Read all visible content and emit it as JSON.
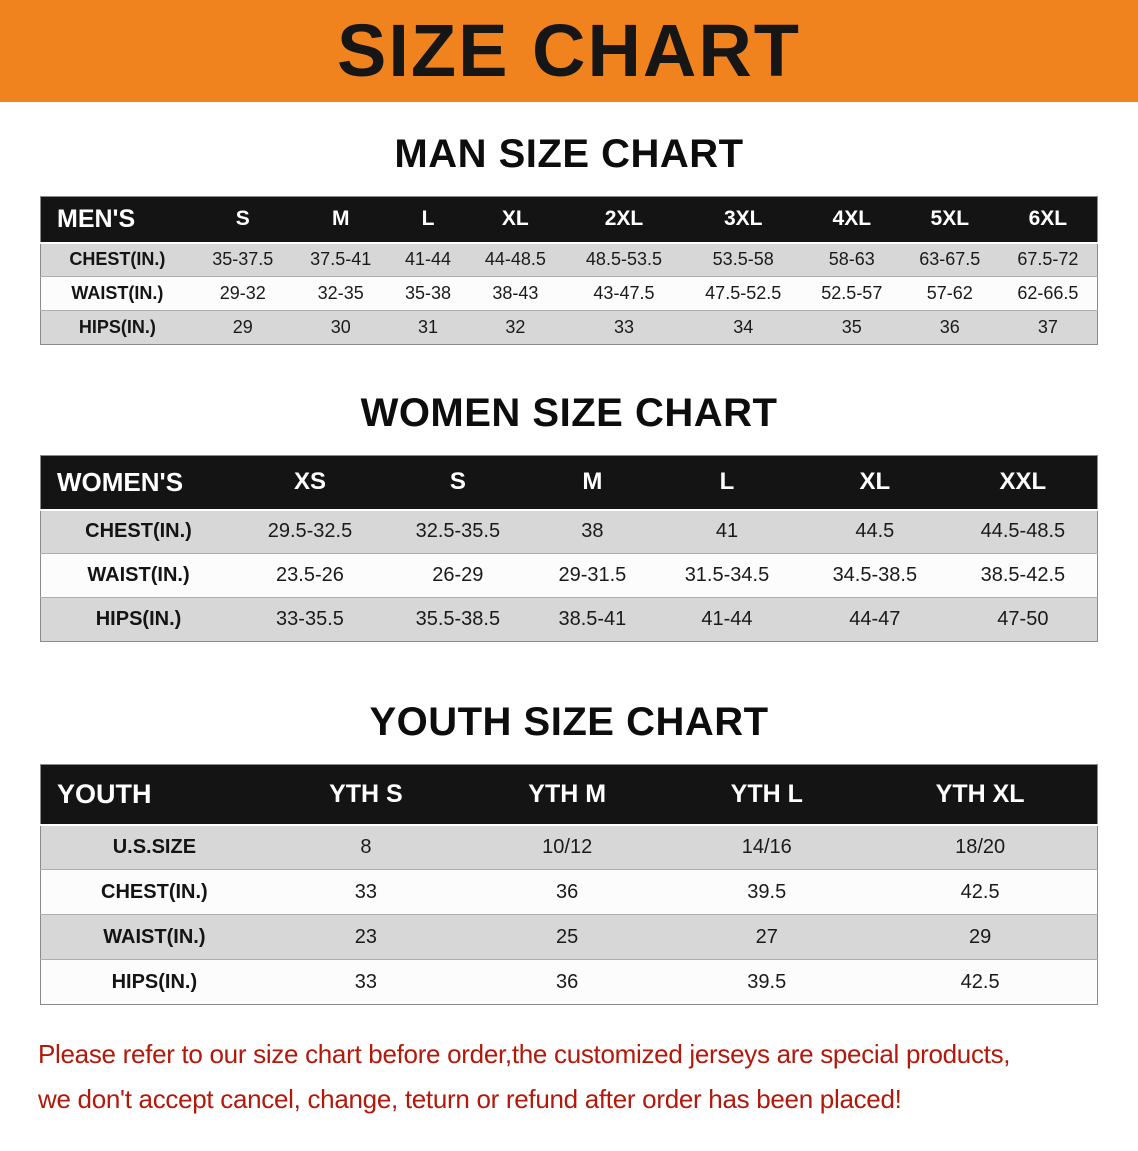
{
  "banner": {
    "title": "SIZE CHART",
    "bg_color": "#f1831f"
  },
  "sections": [
    {
      "id": "men",
      "heading": "MAN SIZE CHART",
      "header": [
        "MEN'S",
        "S",
        "M",
        "L",
        "XL",
        "2XL",
        "3XL",
        "4XL",
        "5XL",
        "6XL"
      ],
      "rows": [
        {
          "label": "CHEST(IN.)",
          "values": [
            "35-37.5",
            "37.5-41",
            "41-44",
            "44-48.5",
            "48.5-53.5",
            "53.5-58",
            "58-63",
            "63-67.5",
            "67.5-72"
          ]
        },
        {
          "label": "WAIST(IN.)",
          "values": [
            "29-32",
            "32-35",
            "35-38",
            "38-43",
            "43-47.5",
            "47.5-52.5",
            "52.5-57",
            "57-62",
            "62-66.5"
          ]
        },
        {
          "label": "HIPS(IN.)",
          "values": [
            "29",
            "30",
            "31",
            "32",
            "33",
            "34",
            "35",
            "36",
            "37"
          ]
        }
      ]
    },
    {
      "id": "women",
      "heading": "WOMEN SIZE CHART",
      "header": [
        "WOMEN'S",
        "XS",
        "S",
        "M",
        "L",
        "XL",
        "XXL"
      ],
      "rows": [
        {
          "label": "CHEST(IN.)",
          "values": [
            "29.5-32.5",
            "32.5-35.5",
            "38",
            "41",
            "44.5",
            "44.5-48.5"
          ]
        },
        {
          "label": "WAIST(IN.)",
          "values": [
            "23.5-26",
            "26-29",
            "29-31.5",
            "31.5-34.5",
            "34.5-38.5",
            "38.5-42.5"
          ]
        },
        {
          "label": "HIPS(IN.)",
          "values": [
            "33-35.5",
            "35.5-38.5",
            "38.5-41",
            "41-44",
            "44-47",
            "47-50"
          ]
        }
      ]
    },
    {
      "id": "youth",
      "heading": "YOUTH SIZE CHART",
      "header": [
        "YOUTH",
        "YTH S",
        "YTH M",
        "YTH L",
        "YTH XL"
      ],
      "rows": [
        {
          "label": "U.S.SIZE",
          "values": [
            "8",
            "10/12",
            "14/16",
            "18/20"
          ]
        },
        {
          "label": "CHEST(IN.)",
          "values": [
            "33",
            "36",
            "39.5",
            "42.5"
          ]
        },
        {
          "label": "WAIST(IN.)",
          "values": [
            "23",
            "25",
            "27",
            "29"
          ]
        },
        {
          "label": "HIPS(IN.)",
          "values": [
            "33",
            "36",
            "39.5",
            "42.5"
          ]
        }
      ]
    }
  ],
  "footer": {
    "color": "#b2190b",
    "lines": [
      "Please refer to our size chart before order,the customized jerseys are special products,",
      "we don't accept cancel, change, teturn or refund after order has been placed!"
    ]
  }
}
